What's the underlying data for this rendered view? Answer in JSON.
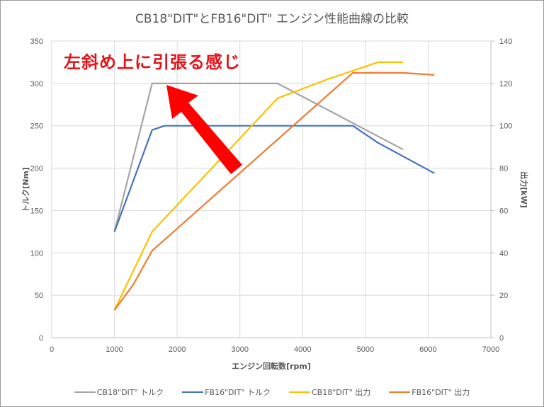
{
  "chart_data": {
    "type": "line",
    "title": "CB18\"DIT\"とFB16\"DIT\" エンジン性能曲線の比較",
    "xlabel": "エンジン回転数[rpm]",
    "ylabel": "トルク[Nm]",
    "y2label": "出力[kW]",
    "xlim": [
      0,
      7000
    ],
    "ylim": [
      0,
      350
    ],
    "y2lim": [
      0,
      140
    ],
    "x_ticks": [
      0,
      1000,
      2000,
      3000,
      4000,
      5000,
      6000,
      7000
    ],
    "y_ticks": [
      0,
      50,
      100,
      150,
      200,
      250,
      300,
      350
    ],
    "y2_ticks": [
      0,
      20,
      40,
      60,
      80,
      100,
      120,
      140
    ],
    "grid": true,
    "legend_position": "bottom",
    "annotation": "左斜め上に引張る感じ",
    "series": [
      {
        "name": "CB18\"DIT\" トルク",
        "axis": "left",
        "color": "#a5a5a5",
        "x": [
          1000,
          1600,
          3600,
          5600
        ],
        "values": [
          125,
          300,
          300,
          222
        ]
      },
      {
        "name": "FB16\"DIT\" トルク",
        "axis": "left",
        "color": "#4472c4",
        "x": [
          1000,
          1600,
          1800,
          4800,
          5200,
          6100
        ],
        "values": [
          125,
          245,
          250,
          250,
          230,
          194
        ]
      },
      {
        "name": "CB18\"DIT\" 出力",
        "axis": "right",
        "color": "#ffc000",
        "x": [
          1000,
          1600,
          3600,
          4400,
          5000,
          5200,
          5600
        ],
        "values": [
          13,
          50,
          113,
          122,
          128,
          130,
          130
        ]
      },
      {
        "name": "FB16\"DIT\" 出力",
        "axis": "right",
        "color": "#ed7d31",
        "x": [
          1000,
          1300,
          1600,
          4800,
          5600,
          6100
        ],
        "values": [
          13,
          25,
          41,
          125,
          125,
          124
        ]
      }
    ]
  },
  "colors": {
    "annotation": "#e3141b",
    "arrow": "#ff0000",
    "grid": "#d9d9d9",
    "text": "#595959"
  }
}
